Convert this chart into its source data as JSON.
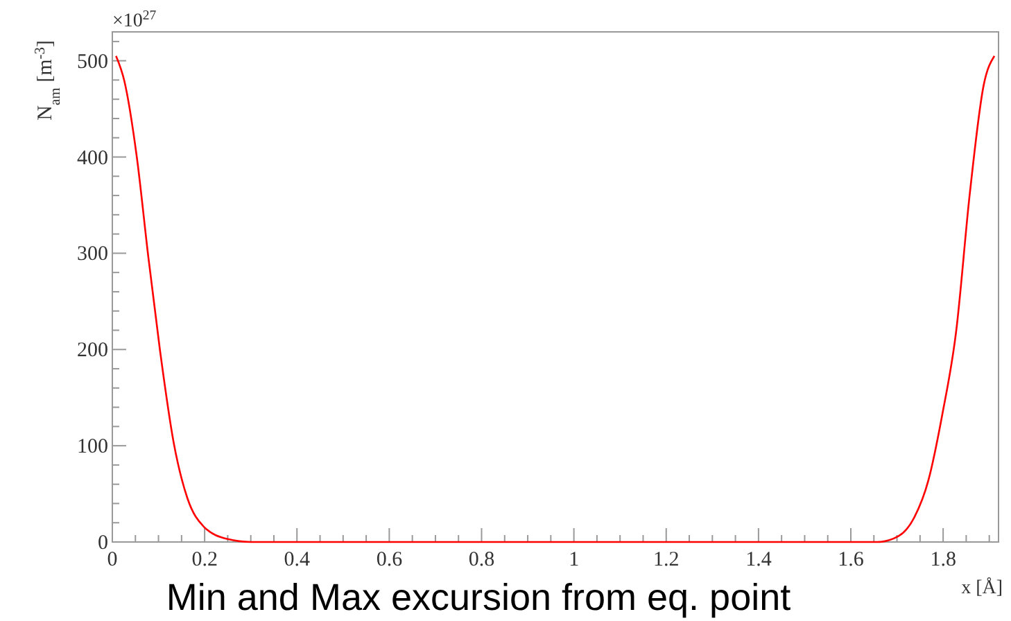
{
  "chart_data": {
    "type": "line",
    "xlabel": "x [Å]",
    "ylabel": "N$_{am}$ [m$^{-3}$]",
    "annotations": [
      "×10$^{27}$",
      "Min and Max excursion from eq. point"
    ],
    "xlim": [
      0,
      1.92
    ],
    "ylim": [
      0,
      530
    ],
    "xticks": [
      0,
      {
        "value": 0.05,
        "label": null
      },
      {
        "value": 0.1,
        "label": null
      },
      {
        "value": 0.15,
        "label": null
      },
      0.2,
      {
        "value": 0.25,
        "label": null
      },
      {
        "value": 0.3,
        "label": null
      },
      {
        "value": 0.35,
        "label": null
      },
      0.4,
      {
        "value": 0.45,
        "label": null
      },
      {
        "value": 0.5,
        "label": null
      },
      {
        "value": 0.55,
        "label": null
      },
      0.6,
      {
        "value": 0.65,
        "label": null
      },
      {
        "value": 0.7,
        "label": null
      },
      {
        "value": 0.75,
        "label": null
      },
      0.8,
      {
        "value": 0.85,
        "label": null
      },
      {
        "value": 0.9,
        "label": null
      },
      {
        "value": 0.95,
        "label": null
      },
      1,
      {
        "value": 1.05,
        "label": null
      },
      {
        "value": 1.1,
        "label": null
      },
      {
        "value": 1.15,
        "label": null
      },
      1.2,
      {
        "value": 1.25,
        "label": null
      },
      {
        "value": 1.3,
        "label": null
      },
      {
        "value": 1.35,
        "label": null
      },
      1.4,
      {
        "value": 1.45,
        "label": null
      },
      {
        "value": 1.5,
        "label": null
      },
      {
        "value": 1.55,
        "label": null
      },
      1.6,
      {
        "value": 1.65,
        "label": null
      },
      {
        "value": 1.7,
        "label": null
      },
      {
        "value": 1.75,
        "label": null
      },
      1.8,
      {
        "value": 1.85,
        "label": null
      },
      {
        "value": 1.9,
        "label": null
      }
    ],
    "yticks": [
      0,
      {
        "value": 20,
        "label": null
      },
      {
        "value": 40,
        "label": null
      },
      {
        "value": 60,
        "label": null
      },
      {
        "value": 80,
        "label": null
      },
      100,
      {
        "value": 120,
        "label": null
      },
      {
        "value": 140,
        "label": null
      },
      {
        "value": 160,
        "label": null
      },
      {
        "value": 180,
        "label": null
      },
      200,
      {
        "value": 220,
        "label": null
      },
      {
        "value": 240,
        "label": null
      },
      {
        "value": 260,
        "label": null
      },
      {
        "value": 280,
        "label": null
      },
      300,
      {
        "value": 320,
        "label": null
      },
      {
        "value": 340,
        "label": null
      },
      {
        "value": 360,
        "label": null
      },
      {
        "value": 380,
        "label": null
      },
      400,
      {
        "value": 420,
        "label": null
      },
      {
        "value": 440,
        "label": null
      },
      {
        "value": 460,
        "label": null
      },
      {
        "value": 480,
        "label": null
      },
      500,
      {
        "value": 520,
        "label": null
      }
    ],
    "grid": false,
    "marker": "none",
    "line_style": "solid",
    "series": [
      {
        "color": "#ff0000",
        "x": [
          0.008,
          0.026,
          0.053,
          0.078,
          0.103,
          0.133,
          0.163,
          0.198,
          0.25,
          0.3,
          0.6,
          0.9,
          1.2,
          1.5,
          1.62,
          1.658,
          1.703,
          1.738,
          1.768,
          1.798,
          1.828,
          1.858,
          1.888,
          1.911
        ],
        "values": [
          505,
          479,
          400,
          296,
          200,
          103,
          45,
          16,
          3,
          0,
          0,
          0,
          0,
          0,
          0,
          0,
          6,
          26,
          64,
          132,
          218,
          363,
          475,
          505
        ]
      }
    ]
  }
}
